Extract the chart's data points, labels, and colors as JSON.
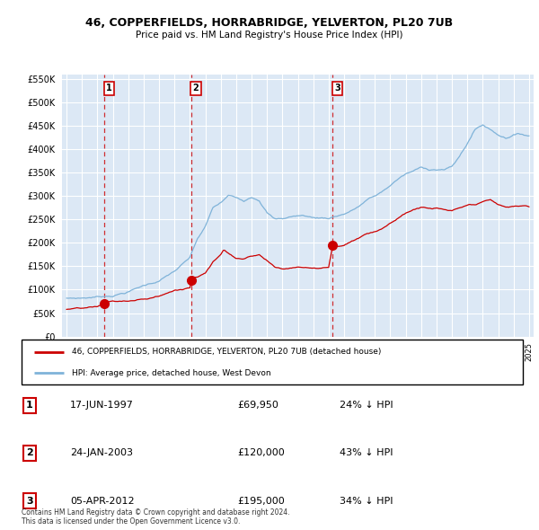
{
  "title": "46, COPPERFIELDS, HORRABRIDGE, YELVERTON, PL20 7UB",
  "subtitle": "Price paid vs. HM Land Registry's House Price Index (HPI)",
  "ylim": [
    0,
    560000
  ],
  "yticks": [
    0,
    50000,
    100000,
    150000,
    200000,
    250000,
    300000,
    350000,
    400000,
    450000,
    500000,
    550000
  ],
  "xlim_left": 1994.7,
  "xlim_right": 2025.3,
  "background_color": "#dce8f5",
  "grid_color": "#ffffff",
  "sale_dates_num": [
    1997.46,
    2003.07,
    2012.26
  ],
  "sale_prices": [
    69950,
    120000,
    195000
  ],
  "sale_labels": [
    "1",
    "2",
    "3"
  ],
  "legend_red": "46, COPPERFIELDS, HORRABRIDGE, YELVERTON, PL20 7UB (detached house)",
  "legend_blue": "HPI: Average price, detached house, West Devon",
  "table_rows": [
    [
      "1",
      "17-JUN-1997",
      "£69,950",
      "24% ↓ HPI"
    ],
    [
      "2",
      "24-JAN-2003",
      "£120,000",
      "43% ↓ HPI"
    ],
    [
      "3",
      "05-APR-2012",
      "£195,000",
      "34% ↓ HPI"
    ]
  ],
  "footer": "Contains HM Land Registry data © Crown copyright and database right 2024.\nThis data is licensed under the Open Government Licence v3.0.",
  "red_color": "#cc0000",
  "blue_color": "#7fb3d9"
}
